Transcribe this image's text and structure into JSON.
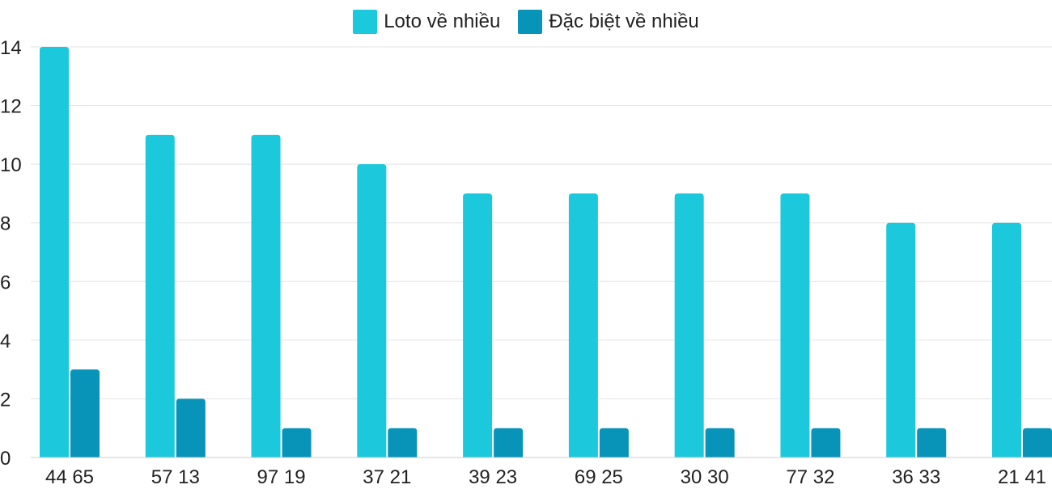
{
  "legend": {
    "items": [
      {
        "label": "Loto về nhiều",
        "color": "#1bc8dc"
      },
      {
        "label": "Đặc biệt về nhiều",
        "color": "#0893b8"
      }
    ]
  },
  "chart_data": {
    "type": "bar",
    "categories": [
      "44 65",
      "57 13",
      "97 19",
      "37 21",
      "39 23",
      "69 25",
      "30 30",
      "77 32",
      "36 33",
      "21 41"
    ],
    "series": [
      {
        "name": "Loto về nhiều",
        "color": "#1bc8dc",
        "values": [
          14,
          11,
          11,
          10,
          9,
          9,
          9,
          9,
          8,
          8
        ]
      },
      {
        "name": "Đặc biệt về nhiều",
        "color": "#0893b8",
        "values": [
          3,
          2,
          1,
          1,
          1,
          1,
          1,
          1,
          1,
          1
        ]
      }
    ],
    "ylim": [
      0,
      14
    ],
    "yticks": [
      0,
      2,
      4,
      6,
      8,
      10,
      12,
      14
    ],
    "grid": true,
    "legend_position": "top-center",
    "title": "",
    "xlabel": "",
    "ylabel": ""
  }
}
